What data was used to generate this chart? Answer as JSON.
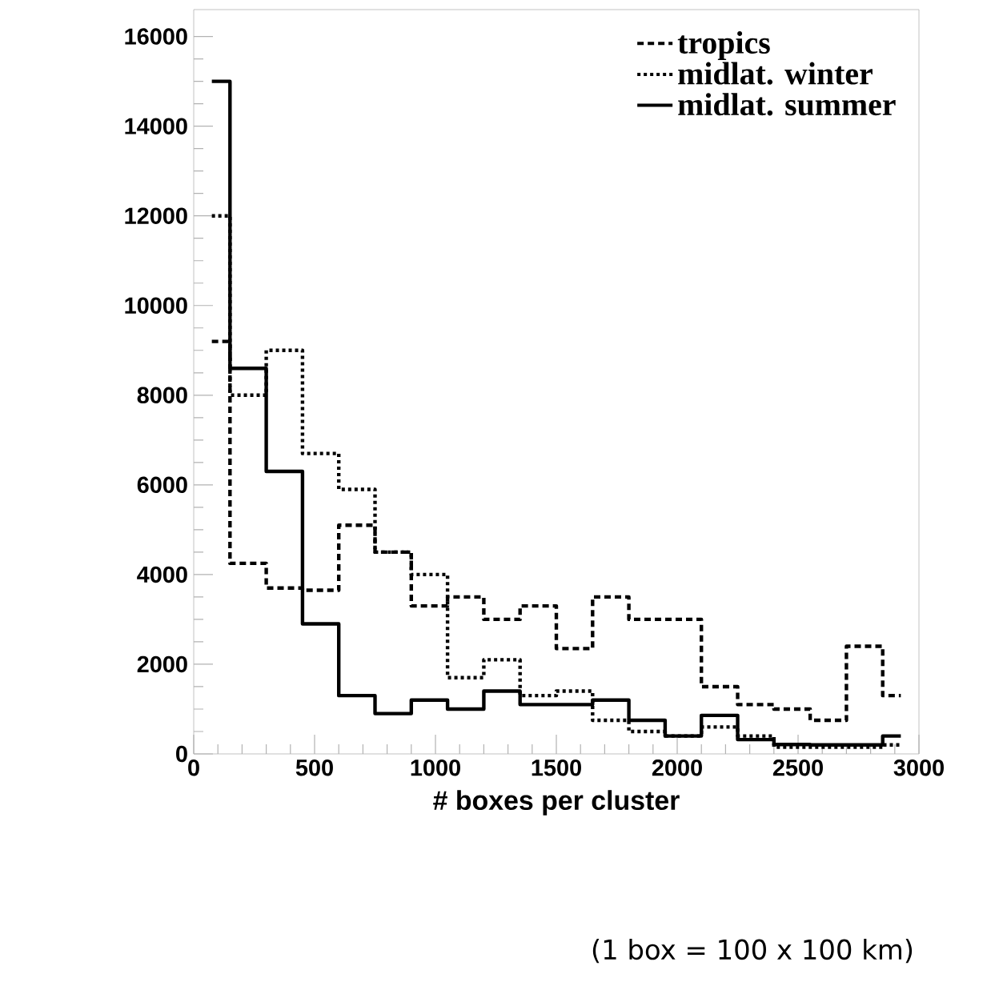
{
  "chart_data": {
    "type": "step",
    "xlabel": "# boxes per cluster",
    "annotations": [
      "(1 box = 100 x 100 km)"
    ],
    "x": [
      75,
      225,
      375,
      525,
      675,
      825,
      975,
      1125,
      1275,
      1425,
      1575,
      1725,
      1875,
      2025,
      2175,
      2325,
      2475,
      2625,
      2775,
      2925
    ],
    "series": [
      {
        "name": "tropics",
        "color": "#000000",
        "line_style": "dashed",
        "values": [
          9200,
          4250,
          3700,
          3650,
          5100,
          4500,
          3300,
          3500,
          3000,
          3300,
          2350,
          3500,
          3000,
          3000,
          1500,
          1100,
          1000,
          750,
          2400,
          1300
        ]
      },
      {
        "name": "midlat. winter",
        "color": "#000000",
        "line_style": "dotted",
        "values": [
          12000,
          8000,
          9000,
          6700,
          5900,
          4500,
          4000,
          1700,
          2100,
          1300,
          1400,
          750,
          500,
          400,
          600,
          400,
          150,
          150,
          150,
          200
        ]
      },
      {
        "name": "midlat. summer",
        "color": "#000000",
        "line_style": "solid",
        "values": [
          15000,
          8600,
          6300,
          2900,
          1300,
          900,
          1200,
          1000,
          1400,
          1100,
          1100,
          1200,
          750,
          400,
          860,
          320,
          210,
          200,
          200,
          400
        ]
      }
    ],
    "xlim": [
      0,
      3000
    ],
    "ylim": [
      0,
      16600
    ],
    "xticks": [
      0,
      500,
      1000,
      1500,
      2000,
      2500,
      3000
    ],
    "yticks": [
      0,
      2000,
      4000,
      6000,
      8000,
      10000,
      12000,
      14000,
      16000
    ],
    "legend": "top right",
    "grid": false
  }
}
